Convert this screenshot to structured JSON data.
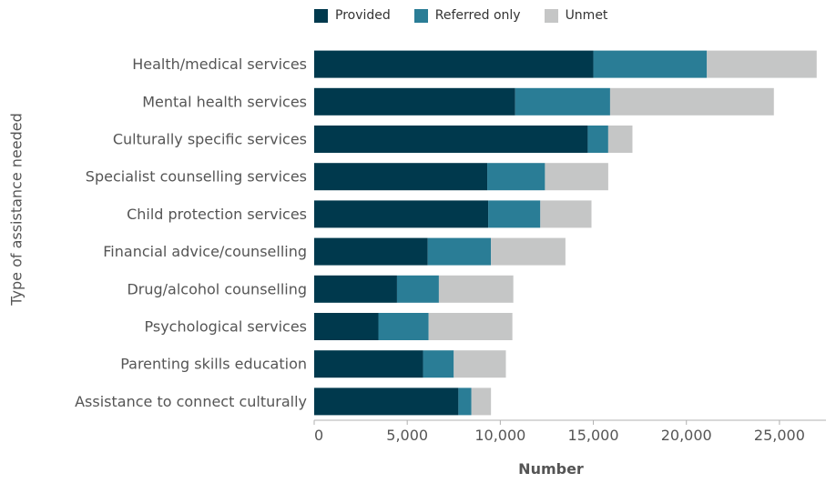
{
  "chart_data": {
    "type": "bar",
    "orientation": "horizontal",
    "stacked": true,
    "ylabel": "Type of assistance needed",
    "xlabel": "Number",
    "xlim": [
      0,
      27500
    ],
    "xticks": [
      0,
      5000,
      10000,
      15000,
      20000,
      25000
    ],
    "xtick_labels": [
      "0",
      "5,000",
      "10,000",
      "15,000",
      "20,000",
      "25,000"
    ],
    "grid": false,
    "legend_position": "top",
    "categories": [
      "Health/medical services",
      "Mental health services",
      "Culturally specific services",
      "Specialist counselling services",
      "Child protection services",
      "Financial advice/counselling",
      "Drug/alcohol counselling",
      "Psychological services",
      "Parenting skills education",
      "Assistance to connect culturally"
    ],
    "series": [
      {
        "name": "Provided",
        "color": "#00394d",
        "values": [
          15000,
          10800,
          14700,
          9300,
          9350,
          6100,
          4450,
          3450,
          5850,
          7750
        ]
      },
      {
        "name": "Referred only",
        "color": "#2a7d96",
        "values": [
          6100,
          5100,
          1100,
          3100,
          2800,
          3400,
          2250,
          2700,
          1650,
          700
        ]
      },
      {
        "name": "Unmet",
        "color": "#c5c6c6",
        "values": [
          5900,
          8800,
          1300,
          3400,
          2750,
          4000,
          4000,
          4500,
          2800,
          1050
        ]
      }
    ]
  }
}
